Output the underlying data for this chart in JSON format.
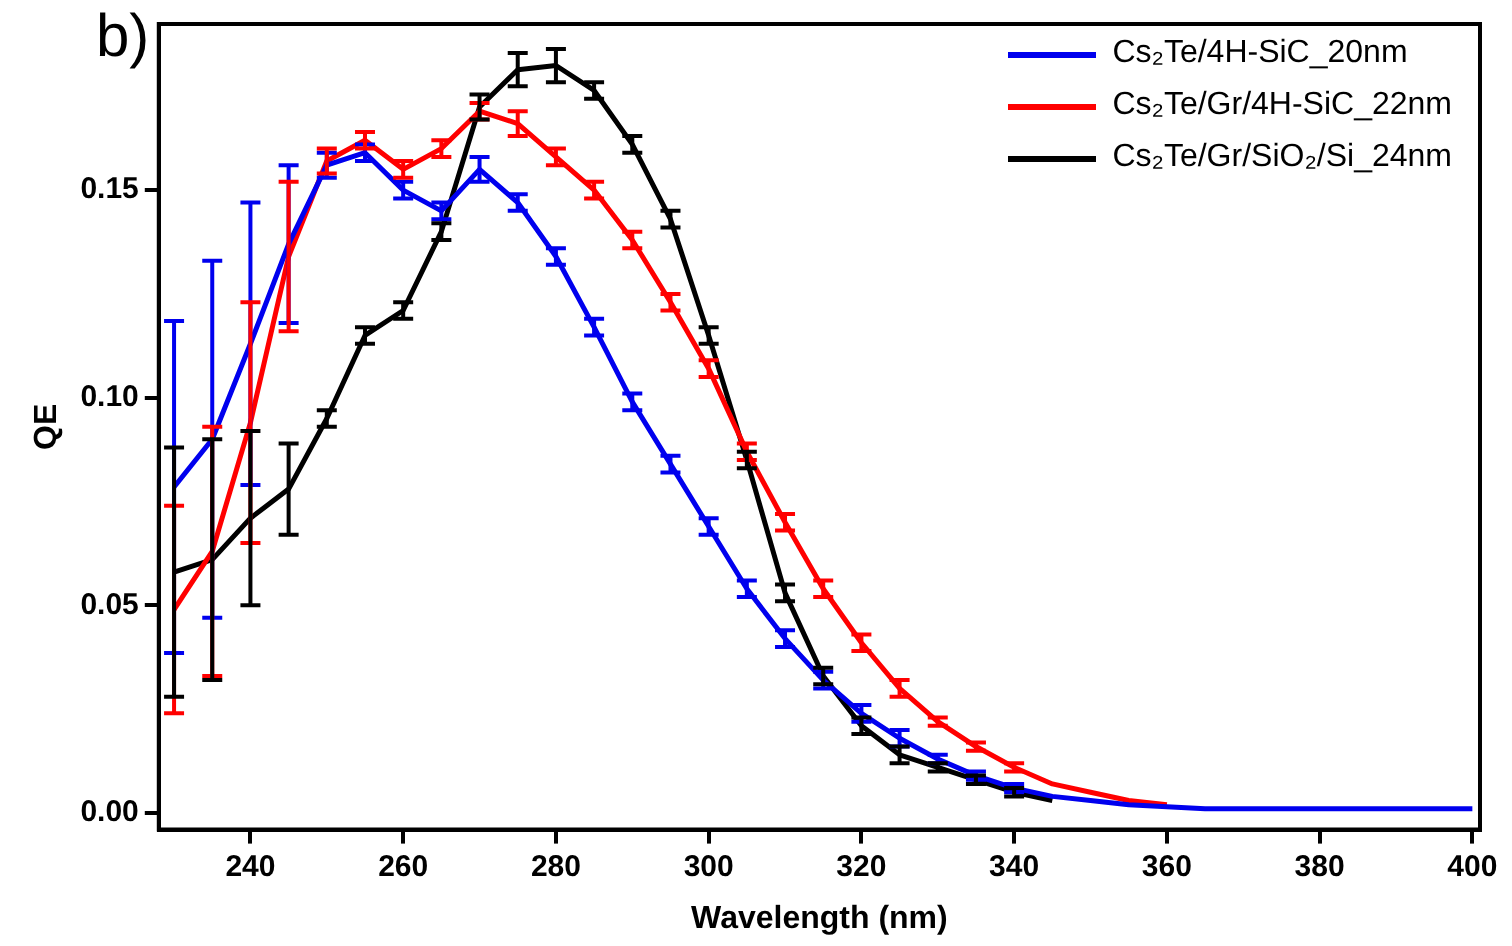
{
  "chart_data": {
    "type": "line",
    "xlabel": "Wavelength (nm)",
    "ylabel": "QE",
    "annotations": [
      "b)"
    ],
    "x": [
      230,
      235,
      240,
      245,
      250,
      255,
      260,
      265,
      270,
      275,
      280,
      285,
      290,
      295,
      300,
      305,
      310,
      315,
      320,
      325,
      330,
      335,
      340,
      345,
      350,
      355,
      360,
      365,
      370,
      375,
      380,
      385,
      390,
      395,
      400
    ],
    "xlim": [
      228,
      401
    ],
    "xticks": [
      240,
      260,
      280,
      300,
      320,
      340,
      360,
      380,
      400
    ],
    "ylim": [
      -0.004,
      0.19
    ],
    "yticks": [
      {
        "value": 0,
        "label": "0.00"
      },
      {
        "value": 0.05,
        "label": "0.05"
      },
      {
        "value": 0.1,
        "label": "0.10"
      },
      {
        "value": 0.15,
        "label": "0.15"
      }
    ],
    "grid": false,
    "legend": "top right",
    "line_style": "solid",
    "series": [
      {
        "name": "Cs₂Te/4H-SiC_20nm",
        "color": "#0000ee",
        "values": [
          0.0785,
          0.09,
          0.113,
          0.137,
          0.156,
          0.159,
          0.15,
          0.145,
          0.155,
          0.147,
          0.134,
          0.117,
          0.099,
          0.084,
          0.069,
          0.054,
          0.042,
          0.032,
          0.024,
          0.018,
          0.013,
          0.009,
          0.006,
          0.004,
          0.003,
          0.002,
          0.0015,
          0.001,
          0.001,
          0.001,
          0.001,
          0.001,
          0.001,
          0.001,
          0.001
        ],
        "errors": [
          0.04,
          0.043,
          0.034,
          0.019,
          0.003,
          0.002,
          0.002,
          0.002,
          0.003,
          0.002,
          0.002,
          0.002,
          0.002,
          0.002,
          0.002,
          0.002,
          0.002,
          0.002,
          0.002,
          0.002,
          0.001,
          0.001,
          0.001,
          null,
          null,
          null,
          null,
          null,
          null,
          null,
          null,
          null,
          null,
          null,
          null
        ]
      },
      {
        "name": "Cs₂Te/Gr/4H-SiC_22nm",
        "color": "#ff0000",
        "values": [
          0.049,
          0.063,
          0.094,
          0.134,
          0.157,
          0.162,
          0.155,
          0.16,
          0.169,
          0.166,
          0.158,
          0.15,
          0.138,
          0.123,
          0.107,
          0.087,
          0.07,
          0.054,
          0.041,
          0.03,
          0.022,
          0.016,
          0.011,
          0.007,
          0.005,
          0.003,
          0.002,
          null,
          null,
          null,
          null,
          null,
          null,
          null,
          null
        ],
        "errors": [
          0.025,
          0.03,
          0.029,
          0.018,
          0.003,
          0.002,
          0.002,
          0.002,
          0.002,
          0.003,
          0.002,
          0.002,
          0.002,
          0.002,
          0.002,
          0.002,
          0.002,
          0.002,
          0.002,
          0.002,
          0.001,
          0.001,
          0.001,
          null,
          null,
          null,
          null,
          null,
          null,
          null,
          null,
          null,
          null,
          null,
          null
        ]
      },
      {
        "name": "Cs₂Te/Gr/SiO₂/Si_24nm",
        "color": "#000000",
        "values": [
          0.058,
          0.061,
          0.071,
          0.078,
          0.095,
          0.115,
          0.121,
          0.14,
          0.17,
          0.179,
          0.18,
          0.174,
          0.161,
          0.143,
          0.115,
          0.085,
          0.053,
          0.033,
          0.021,
          0.014,
          0.011,
          0.008,
          0.005,
          0.003,
          null,
          null,
          null,
          null,
          null,
          null,
          null,
          null,
          null,
          null,
          null
        ],
        "errors": [
          0.03,
          0.029,
          0.021,
          0.011,
          0.002,
          0.002,
          0.002,
          0.002,
          0.003,
          0.004,
          0.004,
          0.002,
          0.002,
          0.002,
          0.002,
          0.002,
          0.002,
          0.002,
          0.002,
          0.002,
          0.001,
          0.001,
          0.001,
          null,
          null,
          null,
          null,
          null,
          null,
          null,
          null,
          null,
          null,
          null,
          null
        ]
      }
    ]
  }
}
